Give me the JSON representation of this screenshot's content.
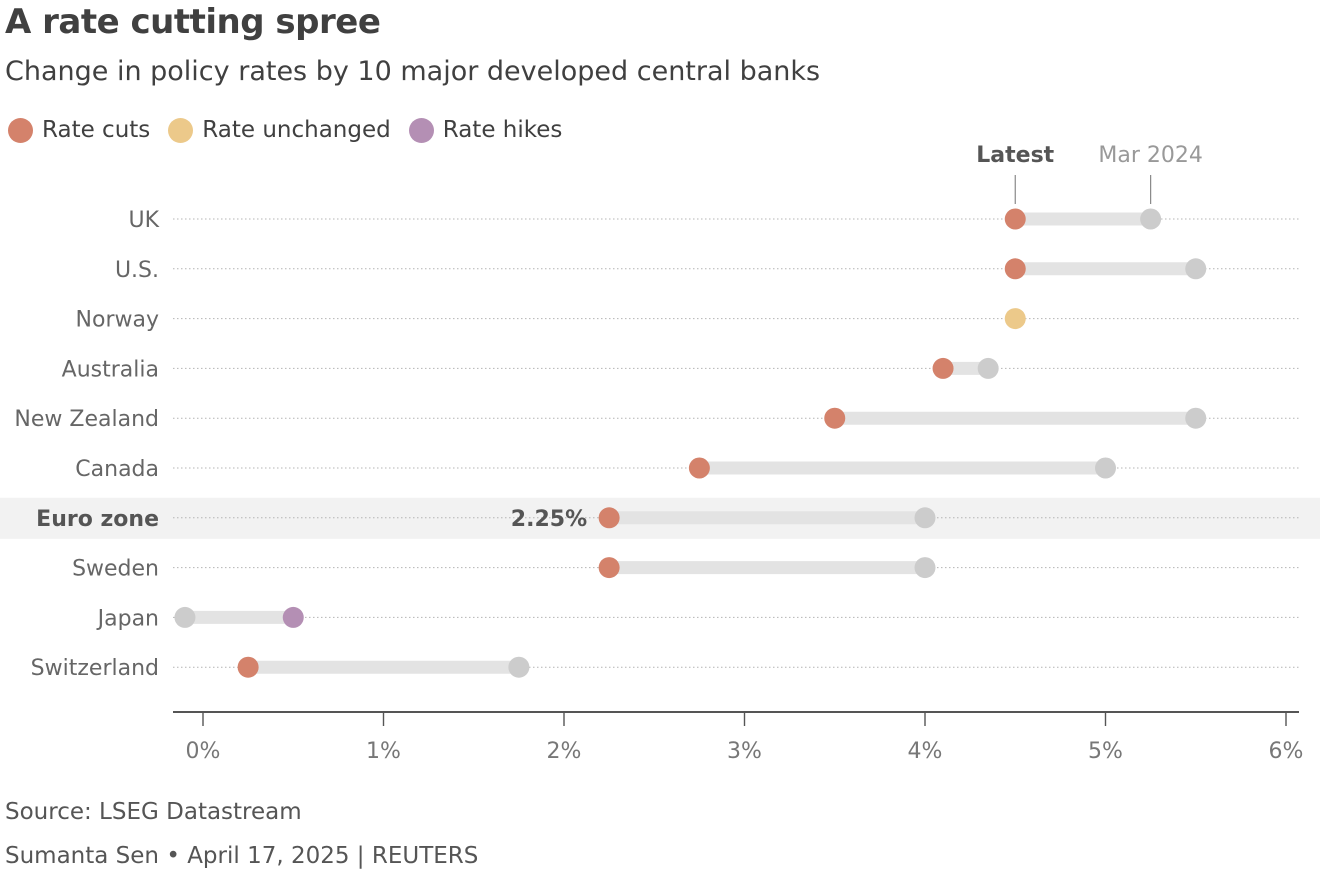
{
  "header": {
    "title": "A rate cutting spree",
    "subtitle": "Change in policy rates by 10 major developed central banks"
  },
  "legend": [
    {
      "label": "Rate cuts",
      "color": "#d4826b"
    },
    {
      "label": "Rate unchanged",
      "color": "#ecc98a"
    },
    {
      "label": "Rate hikes",
      "color": "#b48fb4"
    }
  ],
  "colors": {
    "previous": "#cccccc",
    "connector": "#e3e3e3",
    "gridline": "#b4b4b4",
    "highlight_band": "#f2f2f2",
    "axis": "#555555",
    "tick_text": "#777777"
  },
  "chart_data": {
    "type": "dumbbell",
    "xlabel": "",
    "ylabel": "",
    "xlim": [
      -0.17,
      6.03
    ],
    "x_ticks": [
      0,
      1,
      2,
      3,
      4,
      5,
      6
    ],
    "x_tick_labels": [
      "0%",
      "1%",
      "2%",
      "3%",
      "4%",
      "5%",
      "6%"
    ],
    "series": [
      {
        "name": "Latest",
        "label": "Latest"
      },
      {
        "name": "Mar 2024",
        "label": "Mar 2024"
      }
    ],
    "countries": [
      {
        "name": "UK",
        "latest": 4.5,
        "mar2024": 5.25,
        "change": "cut",
        "highlight": false
      },
      {
        "name": "U.S.",
        "latest": 4.5,
        "mar2024": 5.5,
        "change": "cut",
        "highlight": false
      },
      {
        "name": "Norway",
        "latest": 4.5,
        "mar2024": 4.5,
        "change": "unchanged",
        "highlight": false
      },
      {
        "name": "Australia",
        "latest": 4.1,
        "mar2024": 4.35,
        "change": "cut",
        "highlight": false
      },
      {
        "name": "New Zealand",
        "latest": 3.5,
        "mar2024": 5.5,
        "change": "cut",
        "highlight": false
      },
      {
        "name": "Canada",
        "latest": 2.75,
        "mar2024": 5.0,
        "change": "cut",
        "highlight": false
      },
      {
        "name": "Euro zone",
        "latest": 2.25,
        "mar2024": 4.0,
        "change": "cut",
        "highlight": true,
        "value_label": "2.25%"
      },
      {
        "name": "Sweden",
        "latest": 2.25,
        "mar2024": 4.0,
        "change": "cut",
        "highlight": false
      },
      {
        "name": "Japan",
        "latest": 0.5,
        "mar2024": -0.1,
        "change": "hike",
        "highlight": false
      },
      {
        "name": "Switzerland",
        "latest": 0.25,
        "mar2024": 1.75,
        "change": "cut",
        "highlight": false
      }
    ]
  },
  "footer": {
    "source": "Source: LSEG Datastream",
    "credit": "Sumanta Sen • April 17, 2025 | REUTERS"
  }
}
